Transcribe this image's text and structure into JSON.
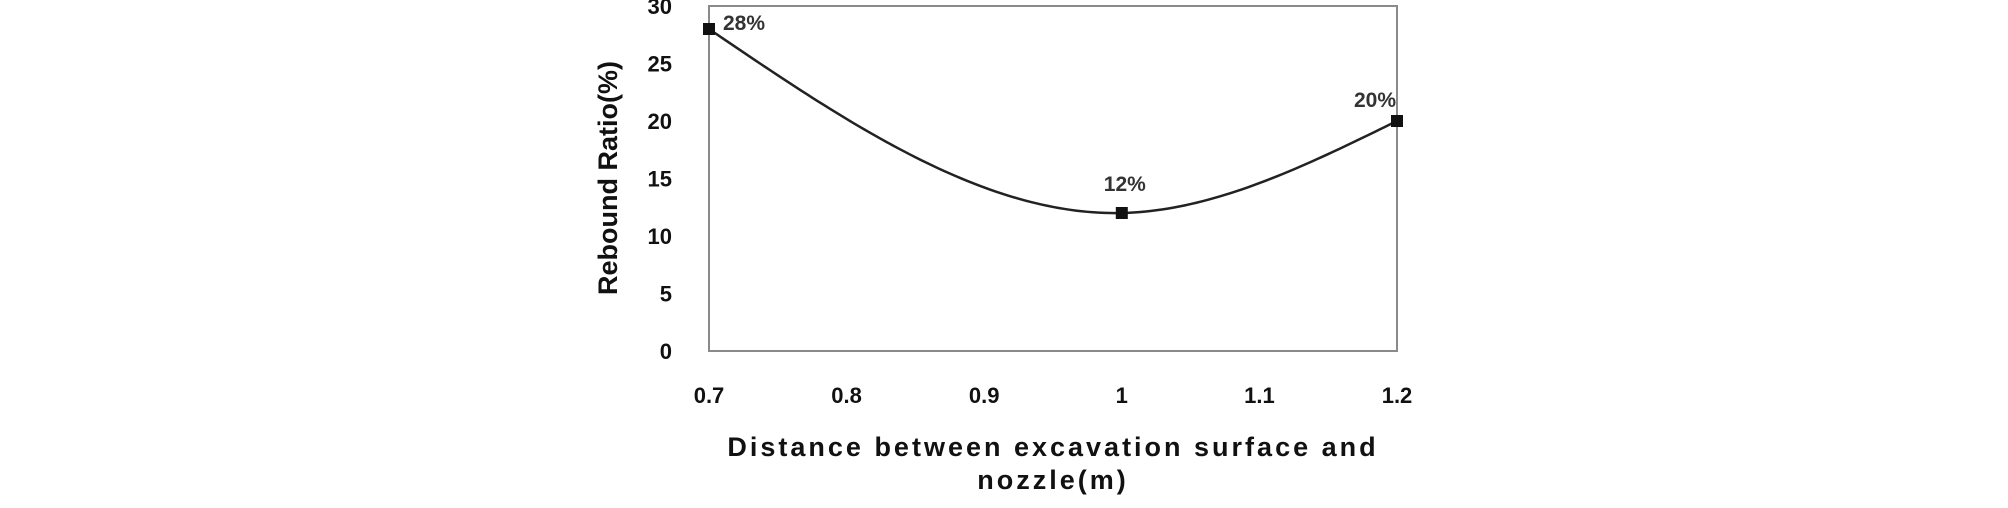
{
  "chart_data": {
    "type": "line",
    "title": "",
    "xlabel": "Distance between excavation surface and nozzle(m)",
    "xlabel_lines": [
      "Distance between excavation surface and",
      "nozzle(m)"
    ],
    "ylabel": "Rebound Ratio(%)",
    "xlim": [
      0.7,
      1.2
    ],
    "ylim": [
      0,
      30
    ],
    "x_ticks": [
      "0.7",
      "0.8",
      "0.9",
      "1",
      "1.1",
      "1.2"
    ],
    "y_ticks": [
      "0",
      "5",
      "10",
      "15",
      "20",
      "25",
      "30"
    ],
    "grid": false,
    "legend": "none",
    "series": [
      {
        "x": [
          0.7,
          1.0,
          1.2
        ],
        "y": [
          28,
          12,
          20
        ],
        "data_labels": [
          "28%",
          "12%",
          "20%"
        ],
        "smooth": true,
        "marker": "square",
        "color": "#222222"
      }
    ]
  }
}
